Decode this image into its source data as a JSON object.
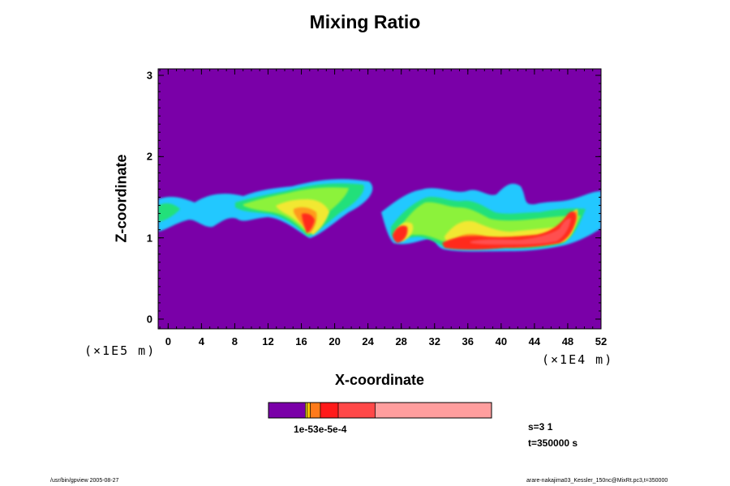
{
  "chart_data": {
    "type": "heatmap",
    "title": "Mixing Ratio",
    "xlabel": "X-coordinate",
    "ylabel": "Z-coordinate",
    "x_scale_label": "(×1E4 m)",
    "y_scale_label": "(×1E5 m)",
    "xlim": [
      -1.2,
      52
    ],
    "ylim": [
      -0.12,
      3.08
    ],
    "x_ticks": [
      "0",
      "4",
      "8",
      "12",
      "16",
      "20",
      "24",
      "28",
      "32",
      "36",
      "40",
      "44",
      "48",
      "52"
    ],
    "y_ticks": [
      "0",
      "1",
      "2",
      "3"
    ],
    "background_color": "#7a00a8",
    "levels": [
      {
        "color": "#22c8ff"
      },
      {
        "color": "#20e07a"
      },
      {
        "color": "#8cf23a"
      },
      {
        "color": "#f2e833"
      },
      {
        "color": "#ff9a1a"
      },
      {
        "color": "#ff2a1a"
      },
      {
        "color": "#ff5050"
      }
    ],
    "colorbar": {
      "segments": [
        {
          "color": "#7a00a8",
          "weight": 16.5
        },
        {
          "color": "#f2e833",
          "weight": 0.7
        },
        {
          "color": "#ffc000",
          "weight": 1.5
        },
        {
          "color": "#ff7a1a",
          "weight": 4.5
        },
        {
          "color": "#ff1a1a",
          "weight": 8
        },
        {
          "color": "#ff4848",
          "weight": 16.5
        },
        {
          "color": "#ff9e9e",
          "weight": 52
        }
      ],
      "label": "1e-53e-5e-4"
    },
    "annotations": {
      "step": "s=3 1",
      "time": "t=350000 s"
    }
  },
  "footer": {
    "left": "/usr/bin/gpview 2005-08-27",
    "right": "arare-nakajima03_Kessler_150nc@MixRt.pc3,t=350000"
  }
}
